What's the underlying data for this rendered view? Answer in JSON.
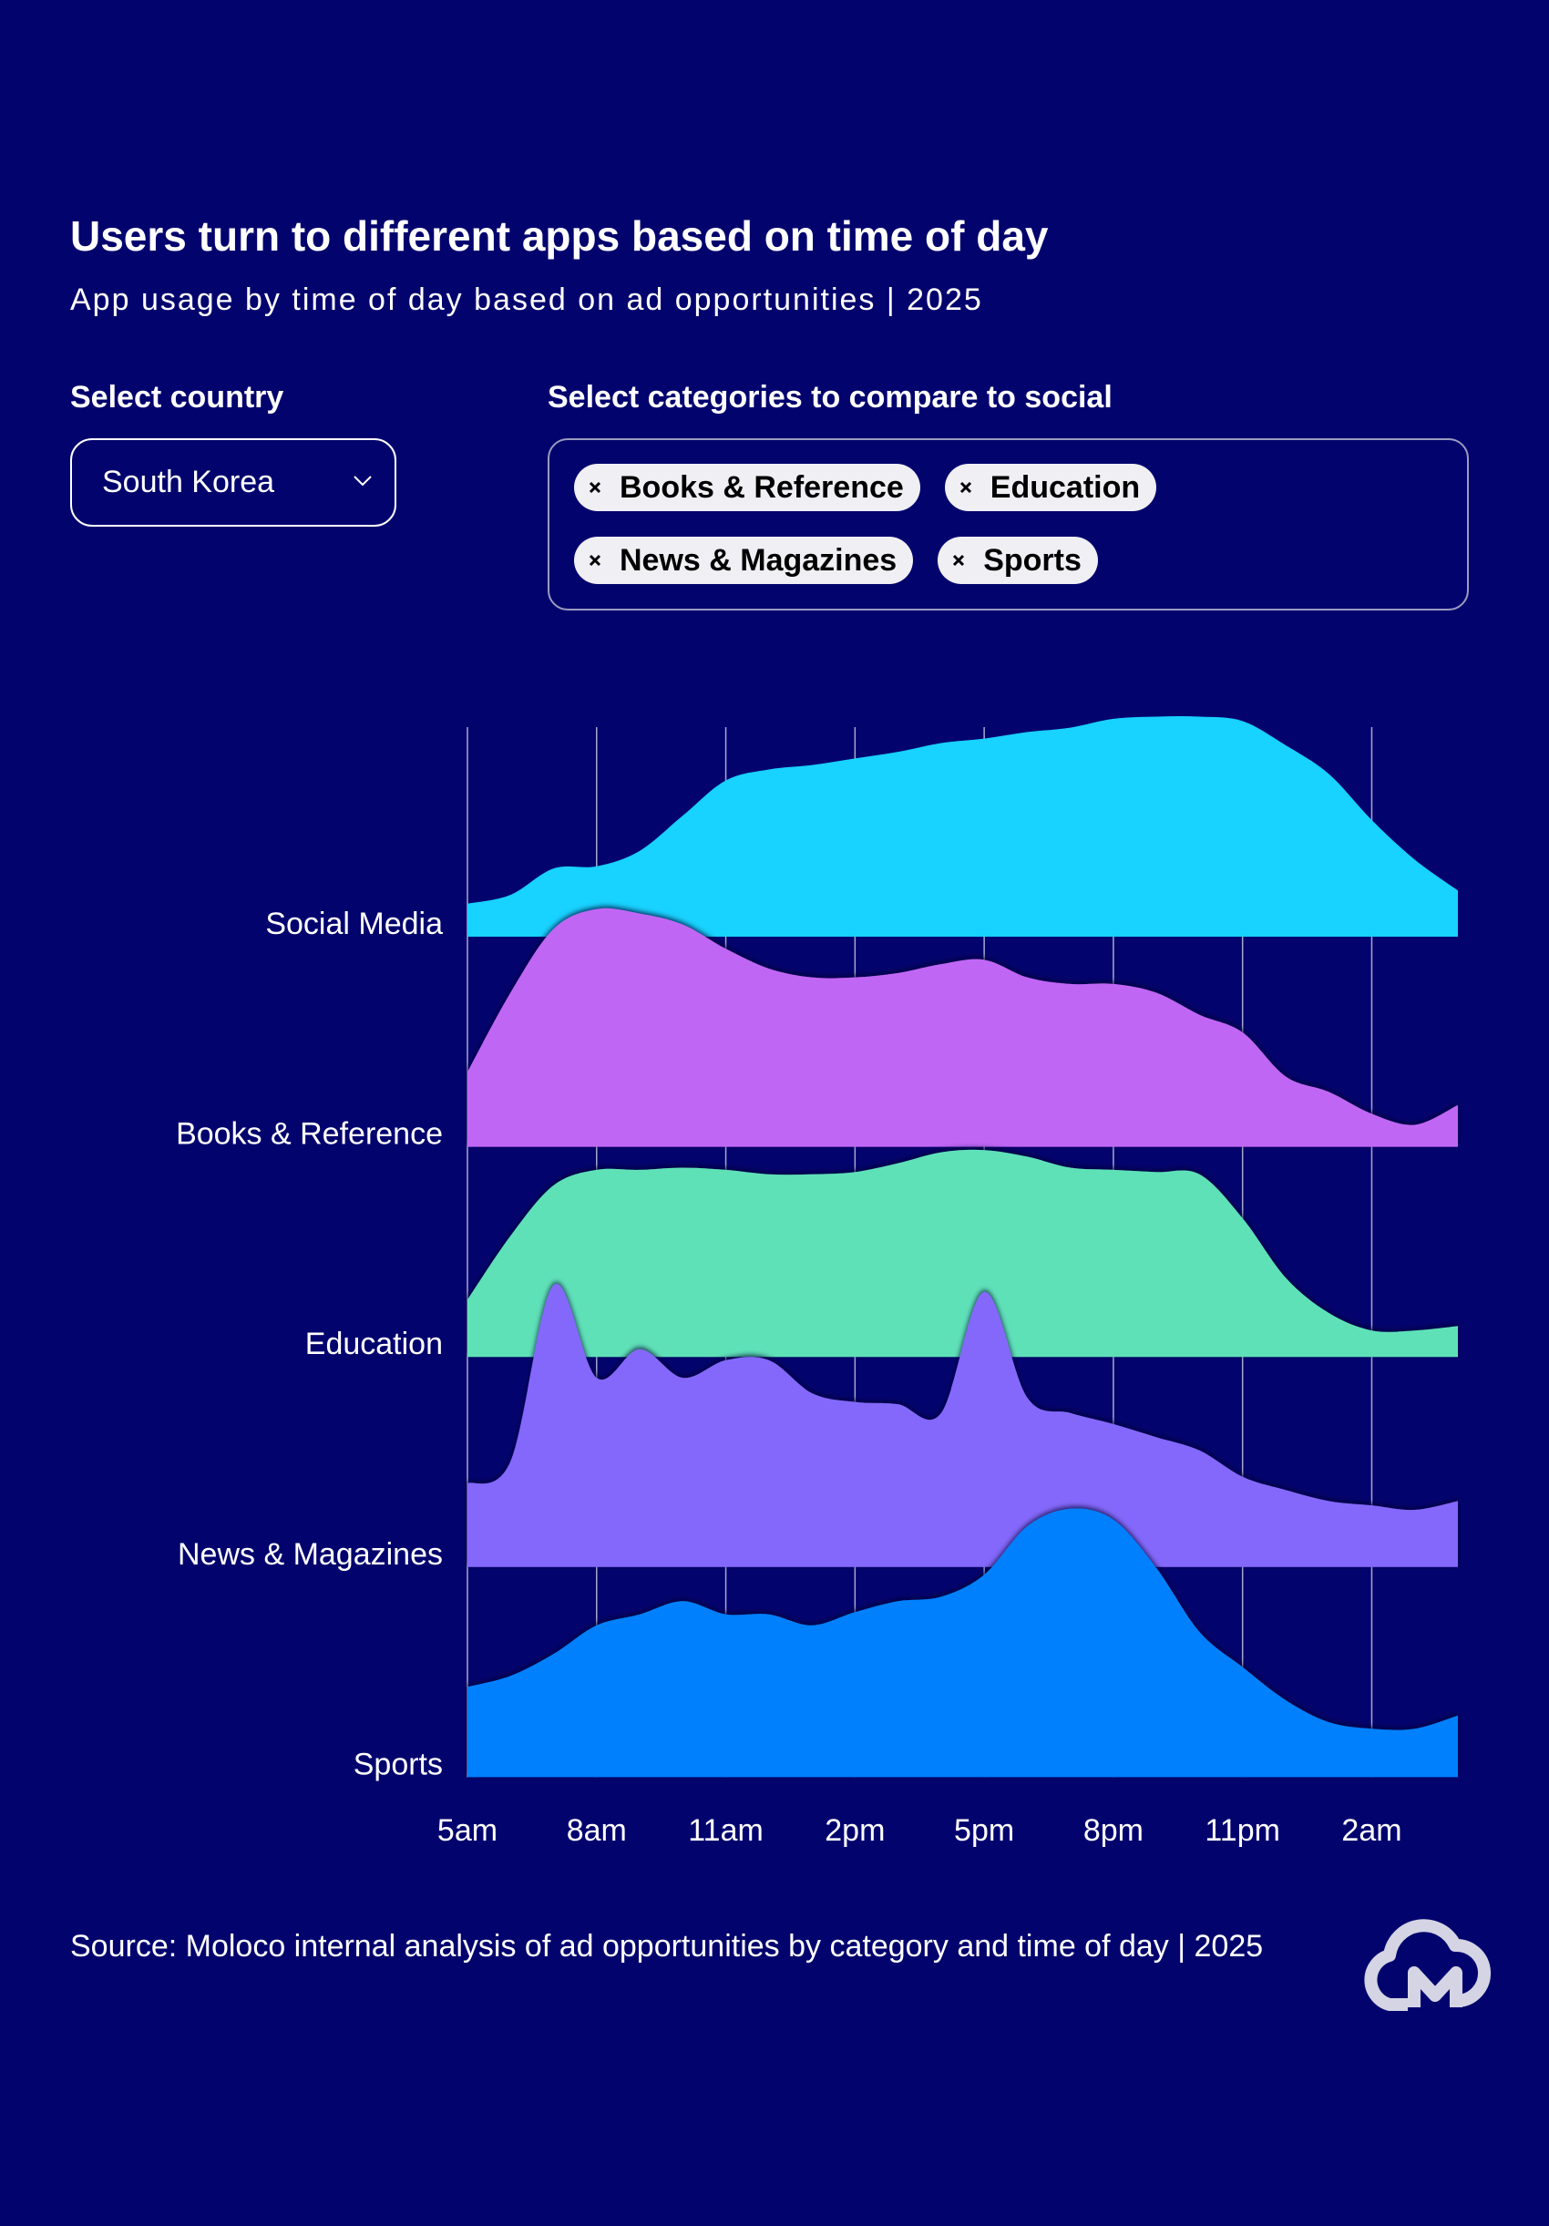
{
  "header": {
    "title": "Users turn to different apps based on time of day",
    "subtitle": "App usage by time of day based on ad opportunities | 2025"
  },
  "controls": {
    "country_label": "Select country",
    "country": "South Korea",
    "categories_label": "Select categories to compare to social",
    "selected": [
      "Books & Reference",
      "Education",
      "News & Magazines",
      "Sports"
    ]
  },
  "chart_data": {
    "type": "ridgeline",
    "categories": [
      "5am",
      null,
      null,
      "8am",
      null,
      null,
      "11am",
      null,
      null,
      "2pm",
      null,
      null,
      "5pm",
      null,
      null,
      "8pm",
      null,
      null,
      "11pm",
      null,
      null,
      "2am",
      null,
      null
    ],
    "grid": true,
    "series": [
      {
        "name": "Social Media",
        "color": "#18d2ff",
        "values": [
          15,
          19,
          31,
          32,
          39,
          55,
          71,
          76,
          78,
          81,
          84,
          88,
          90,
          93,
          95,
          99,
          100,
          100,
          98,
          87,
          74,
          53,
          35,
          21
        ]
      },
      {
        "name": "Books & Reference",
        "color": "#c066f5",
        "values": [
          34,
          70,
          99,
          108,
          106,
          101,
          90,
          81,
          77,
          77,
          79,
          83,
          85,
          77,
          74,
          74,
          70,
          60,
          52,
          32,
          25,
          15,
          10,
          19
        ]
      },
      {
        "name": "Education",
        "color": "#5fe1b8",
        "values": [
          26,
          55,
          78,
          85,
          85,
          86,
          85,
          83,
          83,
          84,
          88,
          93,
          94,
          91,
          86,
          85,
          84,
          83,
          63,
          36,
          20,
          12,
          12,
          14
        ]
      },
      {
        "name": "News & Magazines",
        "color": "#8467fb",
        "values": [
          38,
          48,
          128,
          86,
          99,
          86,
          94,
          94,
          79,
          75,
          74,
          70,
          125,
          77,
          70,
          65,
          59,
          53,
          41,
          35,
          30,
          28,
          26,
          30
        ]
      },
      {
        "name": "Sports",
        "color": "#0080fc",
        "values": [
          41,
          46,
          56,
          69,
          74,
          80,
          74,
          74,
          69,
          75,
          80,
          82,
          92,
          114,
          122,
          117,
          95,
          66,
          50,
          35,
          25,
          22,
          22,
          28
        ]
      }
    ]
  },
  "footer": {
    "source": "Source: Moloco internal analysis of ad opportunities by category and time of day | 2025"
  }
}
